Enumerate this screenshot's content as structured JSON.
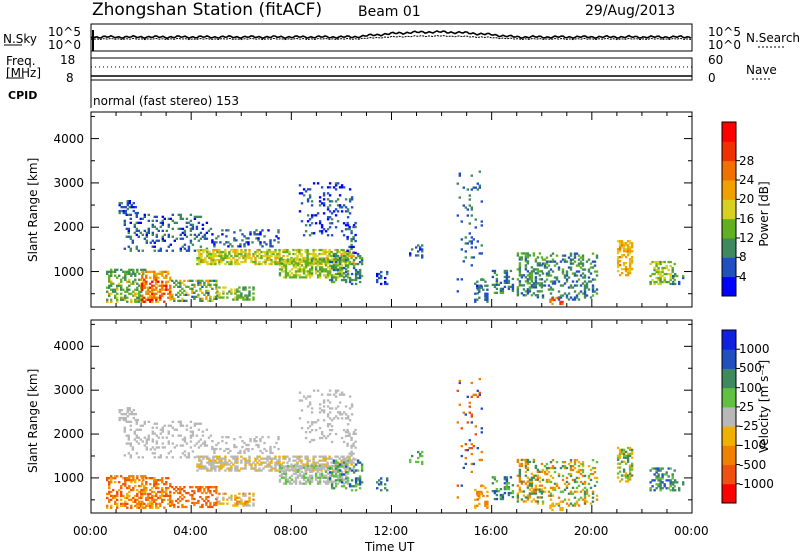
{
  "header": {
    "station": "Zhongshan Station (fitACF)",
    "beam": "Beam 01",
    "date": "29/Aug/2013"
  },
  "top_panels": {
    "sky_label": "N.Sky",
    "sky_top_tick": "10^5",
    "sky_bottom_tick": "10^0",
    "search_label": "N.Search",
    "search_top_tick": "10^5",
    "search_bottom_tick": "10^0",
    "freq_label_1": "Freq.",
    "freq_label_2": "[MHz]",
    "freq_top_tick": "18",
    "freq_bottom_tick": "8",
    "nave_label": "Nave",
    "nave_top_tick": "60",
    "nave_bottom_tick": "0",
    "cpid_label": "CPID",
    "cpid_text": "normal (fast stereo) 153"
  },
  "colors": {
    "power_scale": [
      "#0000ff",
      "#2050c0",
      "#3e8a5e",
      "#60b020",
      "#d8d020",
      "#f0a000",
      "#f07000",
      "#f03000",
      "#ff0000"
    ],
    "velocity_scale": [
      "#ff0000",
      "#f05010",
      "#f08000",
      "#f0b000",
      "#b8b8b8",
      "#60c040",
      "#3e8a5e",
      "#2050c0",
      "#1020e0"
    ]
  },
  "chart_data": [
    {
      "type": "heatmap",
      "name": "power",
      "xlabel": "",
      "ylabel": "Slant Range [km]",
      "yticks": [
        "1000",
        "2000",
        "3000",
        "4000"
      ],
      "ylim": [
        200,
        4600
      ],
      "xlim": [
        0,
        24
      ],
      "colorbar_label": "Power [dB]",
      "colorbar_ticks": [
        "4",
        "8",
        "12",
        "16",
        "20",
        "24",
        "28"
      ],
      "value_range": [
        0,
        32
      ]
    },
    {
      "type": "heatmap",
      "name": "velocity",
      "xlabel": "Time UT",
      "ylabel": "Slant Range [km]",
      "yticks": [
        "1000",
        "2000",
        "3000",
        "4000"
      ],
      "xticks": [
        "00:00",
        "04:00",
        "08:00",
        "12:00",
        "16:00",
        "20:00",
        "00:00"
      ],
      "ylim": [
        200,
        4600
      ],
      "xlim": [
        0,
        24
      ],
      "colorbar_label": "Velocity [m s⁻¹]",
      "colorbar_ticks": [
        "-1000",
        "-500",
        "-100",
        "-25",
        "25",
        "100",
        "500",
        "1000"
      ]
    }
  ]
}
